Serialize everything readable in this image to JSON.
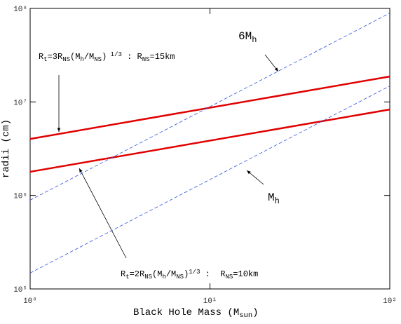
{
  "chart_data": {
    "type": "line",
    "xlabel": [
      {
        "t": "Black Hole Mass (M"
      },
      {
        "t": "sun",
        "sub": true
      },
      {
        "t": ")"
      }
    ],
    "ylabel": "radii (cm)",
    "xscale": "log",
    "yscale": "log",
    "xlim": [
      1,
      100
    ],
    "ylim": [
      100000,
      100000000
    ],
    "xticks": [
      {
        "value": 1,
        "label": "10⁰"
      },
      {
        "value": 10,
        "label": "10¹"
      },
      {
        "value": 100,
        "label": "10²"
      }
    ],
    "yticks": [
      {
        "value": 100000,
        "label": "10⁵"
      },
      {
        "value": 1000000,
        "label": "10⁶"
      },
      {
        "value": 10000000,
        "label": "10⁷"
      },
      {
        "value": 100000000,
        "label": "10⁸"
      }
    ],
    "series": [
      {
        "color": "#e00000",
        "dash": false,
        "x": [
          1,
          100
        ],
        "values": [
          4020000,
          18700000
        ]
      },
      {
        "color": "#e00000",
        "dash": false,
        "x": [
          1,
          100
        ],
        "values": [
          1790000,
          8300000
        ]
      },
      {
        "color": "#3050e0",
        "dash": true,
        "x": [
          1,
          100
        ],
        "values": [
          890000,
          89000000
        ]
      },
      {
        "color": "#3050e0",
        "dash": true,
        "x": [
          1,
          100
        ],
        "values": [
          148000,
          14800000
        ]
      }
    ],
    "annotations": [
      {
        "parts": [
          {
            "t": "R"
          },
          {
            "t": "t",
            "sub": true
          },
          {
            "t": "=3R"
          },
          {
            "t": "NS",
            "sub": true
          },
          {
            "t": "(M"
          },
          {
            "t": "h",
            "sub": true
          },
          {
            "t": "/M"
          },
          {
            "t": "NS",
            "sub": true
          },
          {
            "t": ")"
          },
          {
            "t": " 1/3",
            "sup": true
          },
          {
            "t": " : R"
          },
          {
            "t": "NS",
            "sub": true
          },
          {
            "t": "=15km"
          }
        ]
      },
      {
        "parts": [
          {
            "t": "R"
          },
          {
            "t": "t",
            "sub": true
          },
          {
            "t": "=2R"
          },
          {
            "t": "NS",
            "sub": true
          },
          {
            "t": "(M"
          },
          {
            "t": "h",
            "sub": true
          },
          {
            "t": "/M"
          },
          {
            "t": "NS",
            "sub": true
          },
          {
            "t": ")"
          },
          {
            "t": "1/3",
            "sup": true
          },
          {
            "t": " :  R"
          },
          {
            "t": "NS",
            "sub": true
          },
          {
            "t": "=10km"
          }
        ]
      },
      {
        "parts": [
          {
            "t": "6M"
          },
          {
            "t": "h",
            "sub": true
          }
        ]
      },
      {
        "parts": [
          {
            "t": "M"
          },
          {
            "t": "h",
            "sub": true
          }
        ]
      }
    ]
  }
}
